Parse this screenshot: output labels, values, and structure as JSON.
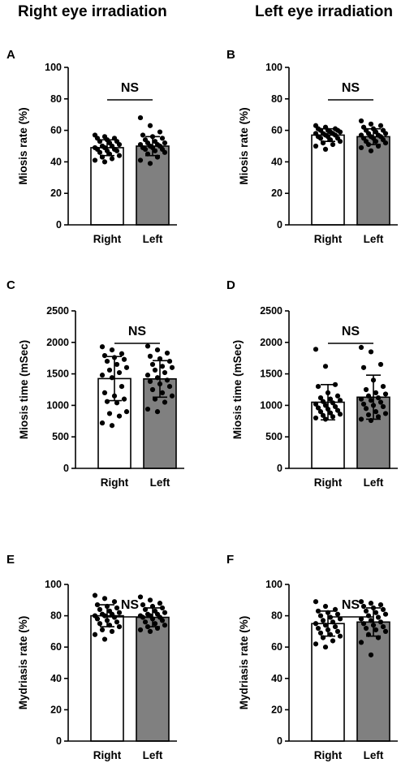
{
  "column_titles": {
    "right": "Right eye irradiation",
    "left": "Left eye irradiation"
  },
  "colors": {
    "right_bar": "#ffffff",
    "left_bar": "#808080",
    "axis": "#000000",
    "point": "#000000"
  },
  "chart_data": [
    {
      "type": "bar",
      "panel_label": "A",
      "ylabel": "Miosis rate (%)",
      "ylim": [
        0,
        100
      ],
      "yticks": [
        0,
        20,
        40,
        60,
        80,
        100
      ],
      "categories": [
        "Right",
        "Left"
      ],
      "values": [
        49,
        50
      ],
      "error": [
        5,
        6
      ],
      "annotation": "NS",
      "points": [
        [
          57,
          56,
          55,
          55,
          54,
          53,
          53,
          52,
          51,
          50,
          50,
          49,
          49,
          48,
          48,
          47,
          47,
          46,
          45,
          44,
          43,
          42,
          41,
          40
        ],
        [
          68,
          63,
          59,
          57,
          56,
          55,
          54,
          53,
          52,
          52,
          51,
          51,
          50,
          50,
          49,
          49,
          48,
          48,
          47,
          46,
          45,
          43,
          41,
          39
        ]
      ]
    },
    {
      "type": "bar",
      "panel_label": "B",
      "ylabel": "Miosis rate (%)",
      "ylim": [
        0,
        100
      ],
      "yticks": [
        0,
        20,
        40,
        60,
        80,
        100
      ],
      "categories": [
        "Right",
        "Left"
      ],
      "values": [
        57,
        56
      ],
      "error": [
        4,
        5
      ],
      "annotation": "NS",
      "points": [
        [
          63,
          62,
          61,
          61,
          60,
          60,
          60,
          59,
          59,
          58,
          58,
          58,
          57,
          57,
          56,
          56,
          55,
          55,
          54,
          53,
          52,
          51,
          50,
          48
        ],
        [
          66,
          64,
          63,
          62,
          61,
          60,
          60,
          59,
          58,
          58,
          57,
          57,
          56,
          56,
          55,
          55,
          54,
          53,
          53,
          52,
          51,
          50,
          49,
          47
        ]
      ]
    },
    {
      "type": "bar",
      "panel_label": "C",
      "ylabel": "Miosis time (mSec)",
      "ylim": [
        0,
        2500
      ],
      "yticks": [
        0,
        500,
        1000,
        1500,
        2000,
        2500
      ],
      "categories": [
        "Right",
        "Left"
      ],
      "values": [
        1425,
        1420
      ],
      "error": [
        350,
        290
      ],
      "annotation": "NS",
      "points": [
        [
          1930,
          1880,
          1820,
          1790,
          1760,
          1730,
          1700,
          1650,
          1600,
          1560,
          1520,
          1480,
          1440,
          1300,
          1200,
          1150,
          1100,
          1060,
          1040,
          900,
          870,
          830,
          720,
          680
        ],
        [
          1940,
          1880,
          1830,
          1780,
          1740,
          1700,
          1650,
          1620,
          1600,
          1560,
          1520,
          1480,
          1440,
          1400,
          1380,
          1340,
          1300,
          1250,
          1200,
          1150,
          1100,
          1050,
          940,
          900
        ]
      ]
    },
    {
      "type": "bar",
      "panel_label": "D",
      "ylabel": "Miosis time (mSec)",
      "ylim": [
        0,
        2500
      ],
      "yticks": [
        0,
        500,
        1000,
        1500,
        2000,
        2500
      ],
      "categories": [
        "Right",
        "Left"
      ],
      "values": [
        1050,
        1130
      ],
      "error": [
        280,
        350
      ],
      "annotation": "NS",
      "points": [
        [
          1890,
          1620,
          1330,
          1300,
          1200,
          1150,
          1120,
          1100,
          1080,
          1060,
          1040,
          1020,
          1000,
          980,
          960,
          940,
          920,
          900,
          880,
          860,
          840,
          820,
          800,
          780
        ],
        [
          1920,
          1850,
          1650,
          1600,
          1400,
          1300,
          1250,
          1200,
          1180,
          1150,
          1120,
          1100,
          1080,
          1050,
          1020,
          1000,
          980,
          950,
          900,
          870,
          850,
          820,
          780,
          760
        ]
      ]
    },
    {
      "type": "bar",
      "panel_label": "E",
      "ylabel": "Mydriasis rate (%)",
      "ylim": [
        0,
        100
      ],
      "yticks": [
        0,
        20,
        40,
        60,
        80,
        100
      ],
      "categories": [
        "Right",
        "Left"
      ],
      "values": [
        80,
        79
      ],
      "error": [
        7,
        6
      ],
      "annotation": "NS",
      "points": [
        [
          93,
          91,
          89,
          87,
          86,
          85,
          84,
          83,
          82,
          81,
          81,
          80,
          80,
          79,
          78,
          77,
          76,
          75,
          74,
          73,
          71,
          70,
          68,
          65
        ],
        [
          92,
          90,
          88,
          87,
          86,
          85,
          84,
          83,
          82,
          81,
          81,
          80,
          80,
          79,
          79,
          78,
          77,
          76,
          75,
          74,
          73,
          72,
          71,
          70
        ]
      ]
    },
    {
      "type": "bar",
      "panel_label": "F",
      "ylabel": "Mydriasis rate (%)",
      "ylim": [
        0,
        100
      ],
      "yticks": [
        0,
        20,
        40,
        60,
        80,
        100
      ],
      "categories": [
        "Right",
        "Left"
      ],
      "values": [
        75,
        76
      ],
      "error": [
        8,
        9
      ],
      "annotation": "NS",
      "points": [
        [
          89,
          86,
          84,
          83,
          82,
          81,
          80,
          79,
          78,
          77,
          76,
          75,
          74,
          73,
          72,
          71,
          70,
          69,
          68,
          67,
          66,
          64,
          62,
          60
        ],
        [
          89,
          88,
          87,
          86,
          85,
          84,
          83,
          82,
          81,
          80,
          79,
          78,
          77,
          76,
          75,
          74,
          73,
          72,
          71,
          70,
          68,
          66,
          63,
          55
        ]
      ]
    }
  ]
}
